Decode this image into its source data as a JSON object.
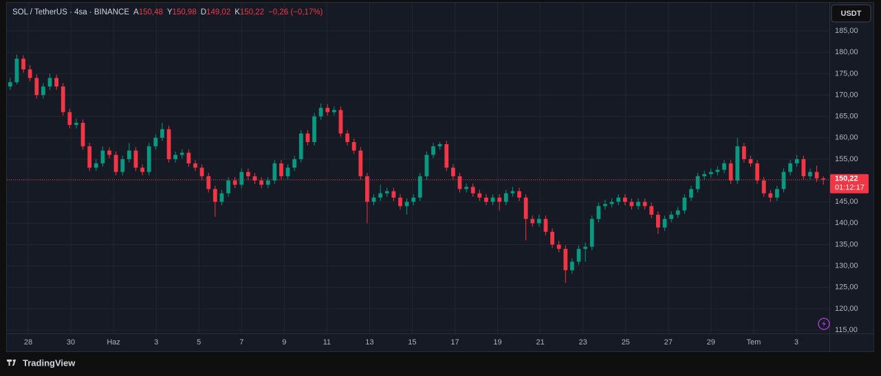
{
  "header": {
    "symbol": "SOL / TetherUS · 4sa · BINANCE",
    "ohlc": [
      {
        "key": "A",
        "value": "150,48"
      },
      {
        "key": "Y",
        "value": "150,98"
      },
      {
        "key": "D",
        "value": "149,02"
      },
      {
        "key": "K",
        "value": "150,22"
      }
    ],
    "change": "−0,26 (−0,17%)"
  },
  "currency_button": "USDT",
  "last_price_label": "150,22",
  "countdown": "01:12:17",
  "branding": "TradingView",
  "chart_data": {
    "type": "candlestick",
    "up_color": "#089981",
    "down_color": "#f23645",
    "grid": true,
    "ylim": [
      114.2,
      191.6
    ],
    "yticks": [
      {
        "value": 115,
        "label": "115,00"
      },
      {
        "value": 120,
        "label": "120,00"
      },
      {
        "value": 125,
        "label": "125,00"
      },
      {
        "value": 130,
        "label": "130,00"
      },
      {
        "value": 135,
        "label": "135,00"
      },
      {
        "value": 140,
        "label": "140,00"
      },
      {
        "value": 145,
        "label": "145,00"
      },
      {
        "value": 150,
        "label": "150,00"
      },
      {
        "value": 155,
        "label": "155,00"
      },
      {
        "value": 160,
        "label": "160,00"
      },
      {
        "value": 165,
        "label": "165,00"
      },
      {
        "value": 170,
        "label": "170,00"
      },
      {
        "value": 175,
        "label": "175,00"
      },
      {
        "value": 180,
        "label": "180,00"
      },
      {
        "value": 185,
        "label": "185,00"
      }
    ],
    "xtick_labels": [
      "28",
      "30",
      "Haz",
      "3",
      "5",
      "7",
      "9",
      "11",
      "13",
      "15",
      "17",
      "19",
      "21",
      "23",
      "25",
      "27",
      "29",
      "Tem",
      "3"
    ],
    "candles": [
      [
        172,
        174,
        171.2,
        173
      ],
      [
        173,
        179.5,
        172.5,
        178.5
      ],
      [
        178.5,
        179.3,
        175.2,
        176
      ],
      [
        176,
        177,
        173.2,
        174
      ],
      [
        174,
        174.8,
        169.2,
        170
      ],
      [
        170,
        172.8,
        169.2,
        172
      ],
      [
        172,
        175,
        171.2,
        174
      ],
      [
        174,
        174.8,
        171.2,
        172
      ],
      [
        172,
        172.8,
        165.2,
        166
      ],
      [
        166,
        166.8,
        162.2,
        163
      ],
      [
        163,
        164.5,
        162.2,
        163.5
      ],
      [
        163.5,
        164.3,
        157.2,
        158
      ],
      [
        158,
        158.8,
        152.2,
        153
      ],
      [
        153,
        155,
        152.2,
        154
      ],
      [
        154,
        158,
        153.2,
        157
      ],
      [
        157,
        157.8,
        155.2,
        156
      ],
      [
        156,
        156.8,
        151.2,
        152
      ],
      [
        152,
        155.8,
        151.2,
        155
      ],
      [
        155,
        158.8,
        154.2,
        157
      ],
      [
        157,
        157.8,
        152.2,
        153
      ],
      [
        153,
        153.8,
        151.2,
        152
      ],
      [
        152,
        158.8,
        151.2,
        158
      ],
      [
        158,
        160.8,
        157.2,
        160
      ],
      [
        160,
        163.5,
        159.2,
        162
      ],
      [
        162,
        162.8,
        154.2,
        155
      ],
      [
        155,
        156.8,
        154.2,
        156
      ],
      [
        156,
        157.3,
        155.2,
        156.5
      ],
      [
        156.5,
        157.3,
        153.2,
        154
      ],
      [
        154,
        154.8,
        152.2,
        153
      ],
      [
        153,
        153.8,
        150.2,
        151
      ],
      [
        151,
        151.8,
        147.2,
        148
      ],
      [
        148,
        148.8,
        141.5,
        145
      ],
      [
        145,
        147.8,
        144.2,
        147
      ],
      [
        147,
        150.8,
        146.2,
        150
      ],
      [
        150,
        150.8,
        148.2,
        149
      ],
      [
        149,
        152.8,
        148.2,
        152
      ],
      [
        152,
        152.8,
        150.2,
        151
      ],
      [
        151,
        151.8,
        149.2,
        150
      ],
      [
        150,
        150.8,
        148.2,
        149
      ],
      [
        149,
        150.8,
        148.2,
        150
      ],
      [
        150,
        154.8,
        149.2,
        154
      ],
      [
        154,
        154.8,
        150.2,
        151
      ],
      [
        151,
        153.8,
        150.2,
        153
      ],
      [
        153,
        155.8,
        152.2,
        155
      ],
      [
        155,
        161.8,
        154.2,
        161
      ],
      [
        161,
        161.8,
        158.2,
        159
      ],
      [
        159,
        165.8,
        158.2,
        165
      ],
      [
        165,
        168,
        164.2,
        167
      ],
      [
        167,
        167.8,
        165.2,
        166
      ],
      [
        166,
        167.3,
        165.2,
        166.5
      ],
      [
        166.5,
        167.3,
        160.2,
        161
      ],
      [
        161,
        161.8,
        158.2,
        159
      ],
      [
        159,
        159.8,
        156.2,
        157
      ],
      [
        157,
        157.8,
        150.2,
        151
      ],
      [
        151,
        151.8,
        140,
        145
      ],
      [
        145,
        146.8,
        144.2,
        146
      ],
      [
        146,
        149,
        145.2,
        147
      ],
      [
        147,
        148.3,
        146.2,
        147.5
      ],
      [
        147.5,
        148.3,
        145.2,
        146
      ],
      [
        146,
        146.8,
        143.2,
        144
      ],
      [
        144,
        145.8,
        142,
        145
      ],
      [
        145,
        146.8,
        144.2,
        146
      ],
      [
        146,
        151.8,
        145.2,
        151
      ],
      [
        151,
        156.8,
        150.2,
        156
      ],
      [
        156,
        158.8,
        155.2,
        158
      ],
      [
        158,
        159,
        157.2,
        158.5
      ],
      [
        158.5,
        159.3,
        152.2,
        153
      ],
      [
        153,
        153.8,
        150.2,
        151
      ],
      [
        151,
        151.8,
        147.2,
        148
      ],
      [
        148,
        149.3,
        147.2,
        148.5
      ],
      [
        148.5,
        149.3,
        146.2,
        147
      ],
      [
        147,
        147.8,
        145.2,
        146
      ],
      [
        146,
        146.8,
        144.2,
        145
      ],
      [
        145,
        146.8,
        144.2,
        146
      ],
      [
        146,
        146.8,
        143,
        145
      ],
      [
        145,
        147.8,
        144.2,
        147
      ],
      [
        147,
        148.5,
        146.2,
        147.5
      ],
      [
        147.5,
        148.3,
        145.2,
        146
      ],
      [
        146,
        146.8,
        136,
        141
      ],
      [
        141,
        141.8,
        139.2,
        140
      ],
      [
        140,
        142,
        139.2,
        141
      ],
      [
        141,
        141.8,
        137.2,
        138
      ],
      [
        138,
        138.8,
        134.2,
        135
      ],
      [
        135,
        135.8,
        133.2,
        134
      ],
      [
        134,
        134.8,
        126,
        129
      ],
      [
        129,
        131.8,
        128.2,
        131
      ],
      [
        131,
        134.8,
        130.2,
        134
      ],
      [
        134,
        135.5,
        131,
        134.5
      ],
      [
        134.5,
        141.8,
        133.7,
        141
      ],
      [
        141,
        144.8,
        140.2,
        144
      ],
      [
        144,
        145.5,
        143.2,
        144.5
      ],
      [
        144.5,
        145.8,
        143.7,
        145
      ],
      [
        145,
        146.8,
        144.2,
        146
      ],
      [
        146,
        146.8,
        144.2,
        145
      ],
      [
        145,
        145.8,
        143.2,
        144
      ],
      [
        144,
        145.8,
        143.2,
        145
      ],
      [
        145,
        145.8,
        143.2,
        144
      ],
      [
        144,
        144.8,
        141.2,
        142
      ],
      [
        142,
        142.8,
        137.5,
        139
      ],
      [
        139,
        141.8,
        138.2,
        141
      ],
      [
        141,
        142.8,
        140.2,
        142
      ],
      [
        142,
        143.8,
        141.2,
        143
      ],
      [
        143,
        146.8,
        142.2,
        146
      ],
      [
        146,
        148.8,
        145.2,
        148
      ],
      [
        148,
        151.8,
        147.2,
        151
      ],
      [
        151,
        152.3,
        150.2,
        151.5
      ],
      [
        151.5,
        152.8,
        150.7,
        152
      ],
      [
        152,
        153.3,
        151.2,
        152.5
      ],
      [
        152.5,
        154.8,
        151.7,
        154
      ],
      [
        154,
        154.8,
        149.2,
        150
      ],
      [
        150,
        160,
        149.2,
        158
      ],
      [
        158,
        158.8,
        154.2,
        155
      ],
      [
        155,
        155.8,
        153.2,
        154
      ],
      [
        154,
        154.8,
        149.2,
        150
      ],
      [
        150,
        150.8,
        146.2,
        147
      ],
      [
        147,
        147.8,
        145,
        146
      ],
      [
        146,
        148.8,
        145.2,
        148
      ],
      [
        148,
        152.8,
        147.2,
        152
      ],
      [
        152,
        154.8,
        151.2,
        154
      ],
      [
        154,
        156,
        153.2,
        155
      ],
      [
        155,
        155.8,
        150.2,
        151
      ],
      [
        151,
        152.8,
        150.2,
        152
      ],
      [
        152,
        153.5,
        149.7,
        150.5
      ],
      [
        150.48,
        150.98,
        149.02,
        150.22
      ]
    ]
  }
}
